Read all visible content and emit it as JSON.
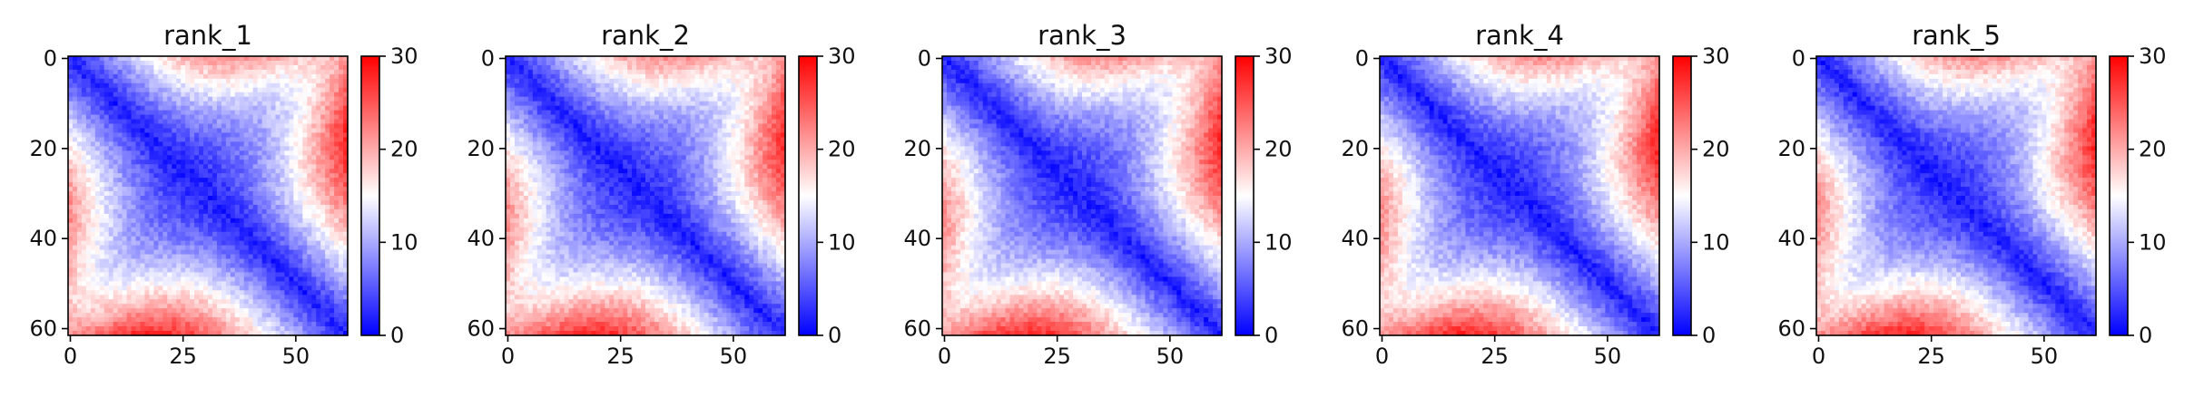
{
  "chart_data": [
    {
      "type": "heatmap",
      "title": "rank_1",
      "x_ticks": [
        "0",
        "25",
        "50"
      ],
      "y_ticks": [
        "0",
        "20",
        "40",
        "60"
      ],
      "colorbar_ticks": [
        "0",
        "10",
        "20",
        "30"
      ],
      "clim": [
        0,
        30
      ],
      "colormap": [
        "#0000ff",
        "#ffffff",
        "#ff0000"
      ],
      "n": 62
    },
    {
      "type": "heatmap",
      "title": "rank_2",
      "x_ticks": [
        "0",
        "25",
        "50"
      ],
      "y_ticks": [
        "0",
        "20",
        "40",
        "60"
      ],
      "colorbar_ticks": [
        "0",
        "10",
        "20",
        "30"
      ],
      "clim": [
        0,
        30
      ],
      "colormap": [
        "#0000ff",
        "#ffffff",
        "#ff0000"
      ],
      "n": 62
    },
    {
      "type": "heatmap",
      "title": "rank_3",
      "x_ticks": [
        "0",
        "25",
        "50"
      ],
      "y_ticks": [
        "0",
        "20",
        "40",
        "60"
      ],
      "colorbar_ticks": [
        "0",
        "10",
        "20",
        "30"
      ],
      "clim": [
        0,
        30
      ],
      "colormap": [
        "#0000ff",
        "#ffffff",
        "#ff0000"
      ],
      "n": 62
    },
    {
      "type": "heatmap",
      "title": "rank_4",
      "x_ticks": [
        "0",
        "25",
        "50"
      ],
      "y_ticks": [
        "0",
        "20",
        "40",
        "60"
      ],
      "colorbar_ticks": [
        "0",
        "10",
        "20",
        "30"
      ],
      "clim": [
        0,
        30
      ],
      "colormap": [
        "#0000ff",
        "#ffffff",
        "#ff0000"
      ],
      "n": 62
    },
    {
      "type": "heatmap",
      "title": "rank_5",
      "x_ticks": [
        "0",
        "25",
        "50"
      ],
      "y_ticks": [
        "0",
        "20",
        "40",
        "60"
      ],
      "colorbar_ticks": [
        "0",
        "10",
        "20",
        "30"
      ],
      "clim": [
        0,
        30
      ],
      "colormap": [
        "#0000ff",
        "#ffffff",
        "#ff0000"
      ],
      "n": 62
    }
  ]
}
